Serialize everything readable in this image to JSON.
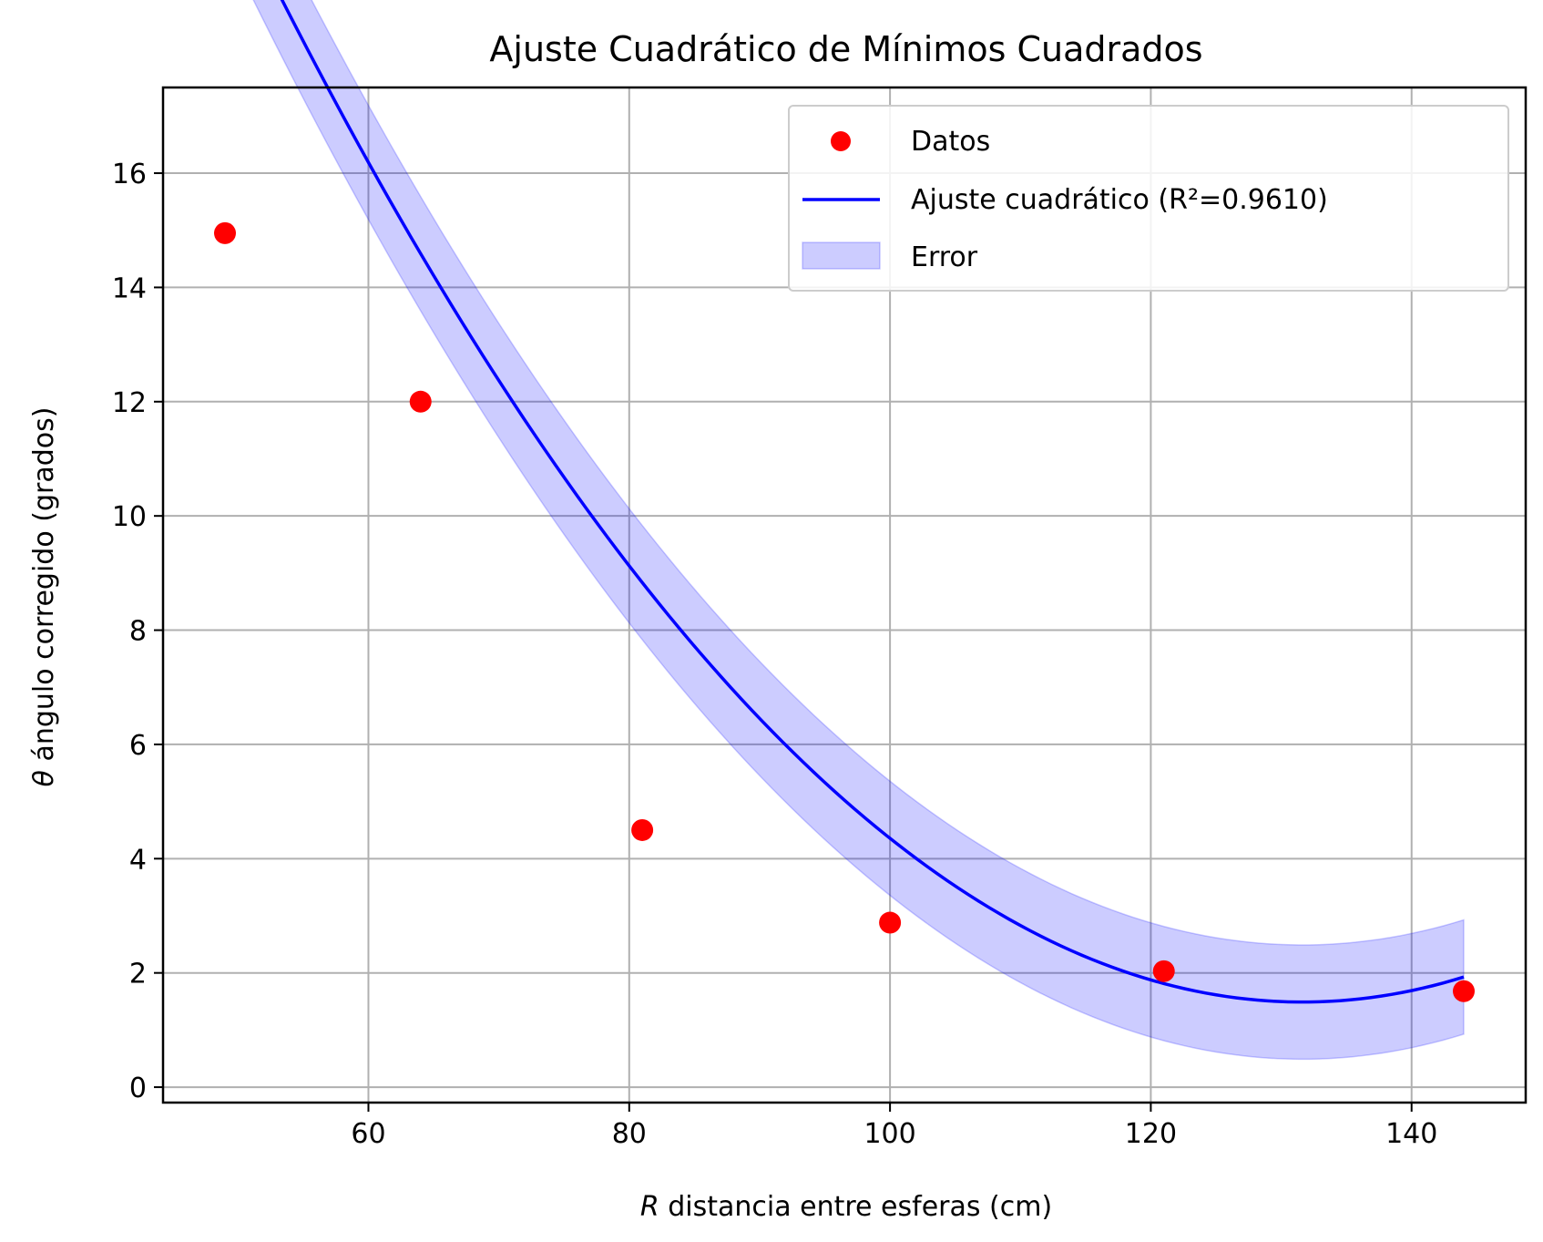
{
  "chart_data": {
    "type": "scatter",
    "title": "Ajuste Cuadrático de Mínimos Cuadrados",
    "xlabel_var": "R",
    "xlabel_rest": " distancia entre esferas (cm)",
    "ylabel_var": "θ",
    "ylabel_rest": " ángulo corregido (grados)",
    "xlim": [
      44.25,
      148.75
    ],
    "ylim": [
      -0.27,
      17.5
    ],
    "xticks": [
      60,
      80,
      100,
      120,
      140
    ],
    "yticks": [
      0,
      2,
      4,
      6,
      8,
      10,
      12,
      14,
      16
    ],
    "grid": true,
    "legend_position": "top-right",
    "series": [
      {
        "name": "Datos",
        "kind": "scatter",
        "color": "#ff0000",
        "x": [
          49,
          64,
          81,
          100,
          121,
          144
        ],
        "y": [
          14.95,
          12.0,
          4.5,
          2.88,
          2.03,
          1.68
        ]
      },
      {
        "name": "Ajuste cuadrático (R²=0.9610)",
        "kind": "line",
        "color": "#0000ff",
        "coefficients": {
          "a": 0.0028645,
          "b": -0.75412,
          "c": 51.123
        },
        "x_range": [
          49,
          144
        ]
      },
      {
        "name": "Error",
        "kind": "band",
        "color": "#0000ff",
        "half_width": 1.0
      }
    ]
  }
}
